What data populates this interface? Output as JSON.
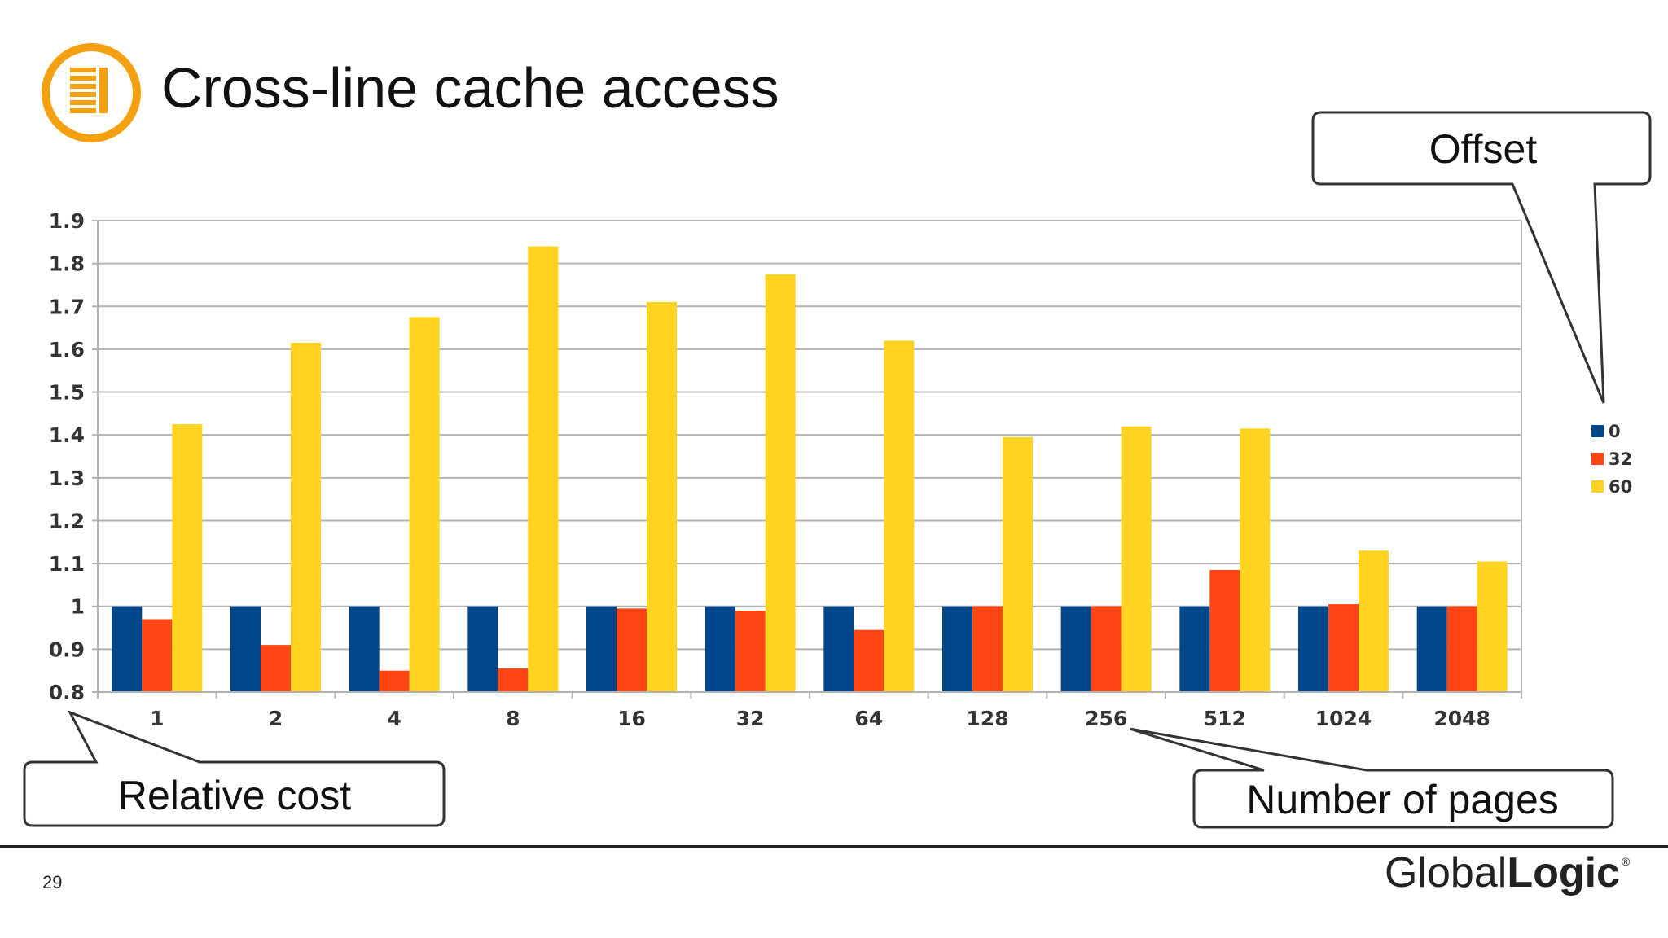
{
  "slide": {
    "title": "Cross-line cache access",
    "page_number": "29",
    "brand_part1": "Global",
    "brand_part2": "Logic",
    "brand_mark": "®",
    "logo_icon": "document-list-icon",
    "accent_color": "#F5A00F"
  },
  "callouts": {
    "offset": "Offset",
    "relative_cost": "Relative cost",
    "number_of_pages": "Number of pages"
  },
  "chart_data": {
    "type": "bar",
    "title": "",
    "xlabel": "",
    "ylabel": "",
    "ylim": [
      0.8,
      1.9
    ],
    "yticks": [
      "1.9",
      "1.8",
      "1.7",
      "1.6",
      "1.5",
      "1.4",
      "1.3",
      "1.2",
      "1.1",
      "1",
      "0.9",
      "0.8"
    ],
    "grid": true,
    "legend_position": "right",
    "categories": [
      "1",
      "2",
      "4",
      "8",
      "16",
      "32",
      "64",
      "128",
      "256",
      "512",
      "1024",
      "2048"
    ],
    "series": [
      {
        "name": "0",
        "color": "#00468B",
        "values": [
          1.0,
          1.0,
          1.0,
          1.0,
          1.0,
          1.0,
          1.0,
          1.0,
          1.0,
          1.0,
          1.0,
          1.0
        ]
      },
      {
        "name": "32",
        "color": "#FF4514",
        "values": [
          0.97,
          0.91,
          0.85,
          0.855,
          0.995,
          0.99,
          0.945,
          1.0,
          1.0,
          1.085,
          1.005,
          1.0
        ]
      },
      {
        "name": "60",
        "color": "#FFD320",
        "values": [
          1.425,
          1.615,
          1.675,
          1.84,
          1.71,
          1.775,
          1.62,
          1.395,
          1.42,
          1.415,
          1.13,
          1.105
        ]
      }
    ]
  }
}
